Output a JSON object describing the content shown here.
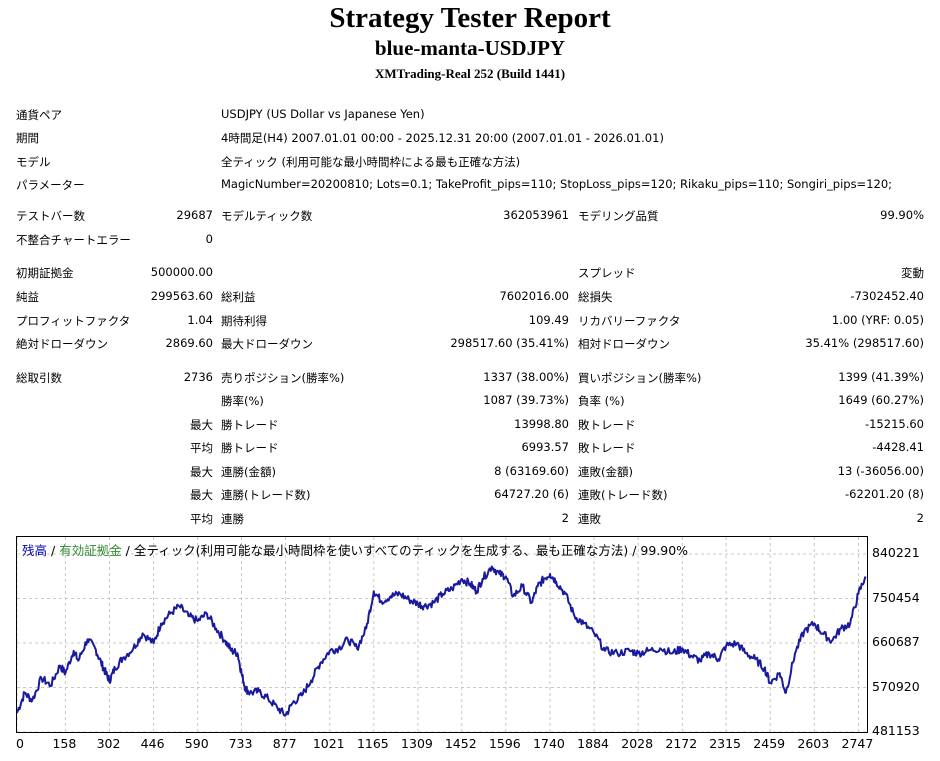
{
  "header": {
    "title": "Strategy Tester Report",
    "ea_name": "blue-manta-USDJPY",
    "server": "XMTrading-Real 252 (Build 1441)"
  },
  "settings": {
    "symbol_label": "通貨ペア",
    "symbol_value": "USDJPY (US Dollar vs Japanese Yen)",
    "period_label": "期間",
    "period_value": "4時間足(H4) 2007.01.01 00:00 - 2025.12.31 20:00 (2007.01.01 - 2026.01.01)",
    "model_label": "モデル",
    "model_value": "全ティック (利用可能な最小時間枠による最も正確な方法)",
    "params_label": "パラメーター",
    "params_value": "MagicNumber=20200810; Lots=0.1; TakeProfit_pips=110; StopLoss_pips=120; Rikaku_pips=110; Songiri_pips=120;"
  },
  "stats": {
    "bars_label": "テストバー数",
    "bars_value": "29687",
    "ticks_label": "モデルティック数",
    "ticks_value": "362053961",
    "quality_label": "モデリング品質",
    "quality_value": "99.90%",
    "errors_label": "不整合チャートエラー",
    "errors_value": "0",
    "deposit_label": "初期証拠金",
    "deposit_value": "500000.00",
    "spread_label": "スプレッド",
    "spread_value": "変動",
    "net_label": "純益",
    "net_value": "299563.60",
    "gross_profit_label": "総利益",
    "gross_profit_value": "7602016.00",
    "gross_loss_label": "総損失",
    "gross_loss_value": "-7302452.40",
    "pf_label": "プロフィットファクタ",
    "pf_value": "1.04",
    "expected_label": "期待利得",
    "expected_value": "109.49",
    "recovery_label": "リカバリーファクタ",
    "recovery_value": "1.00 (YRF: 0.05)",
    "abs_dd_label": "絶対ドローダウン",
    "abs_dd_value": "2869.60",
    "max_dd_label": "最大ドローダウン",
    "max_dd_value": "298517.60 (35.41%)",
    "rel_dd_label": "相対ドローダウン",
    "rel_dd_value": "35.41% (298517.60)",
    "total_trades_label": "総取引数",
    "total_trades_value": "2736",
    "short_label": "売りポジション(勝率%)",
    "short_value": "1337 (38.00%)",
    "long_label": "買いポジション(勝率%)",
    "long_value": "1399 (41.39%)",
    "win_label": "勝率(%)",
    "win_value": "1087 (39.73%)",
    "loss_label": "負率 (%)",
    "loss_value": "1649 (60.27%)",
    "max_win_prefix": "最大",
    "max_win_label": "勝トレード",
    "max_win_value": "13998.80",
    "max_loss_label": "敗トレード",
    "max_loss_value": "-15215.60",
    "avg_win_prefix": "平均",
    "avg_win_label": "勝トレード",
    "avg_win_value": "6993.57",
    "avg_loss_label": "敗トレード",
    "avg_loss_value": "-4428.41",
    "max_cw_prefix": "最大",
    "max_cw_label": "連勝(金額)",
    "max_cw_value": "8 (63169.60)",
    "max_cl_label": "連敗(金額)",
    "max_cl_value": "13 (-36056.00)",
    "max_cwt_prefix": "最大",
    "max_cwt_label": "連勝(トレード数)",
    "max_cwt_value": "64727.20 (6)",
    "max_clt_label": "連敗(トレード数)",
    "max_clt_value": "-62201.20 (8)",
    "avg_cw_prefix": "平均",
    "avg_cw_label": "連勝",
    "avg_cw_value": "2",
    "avg_cl_label": "連敗",
    "avg_cl_value": "2"
  },
  "legend": {
    "balance": "残高",
    "sep1": " / ",
    "equity": "有効証拠金",
    "rest": " / 全ティック(利用可能な最小時間枠を使いすべてのティックを生成する、最も正確な方法) / 99.90%"
  },
  "colors": {
    "balance": "#0000b0",
    "equity": "#2e8b2e",
    "line": "#1a1a9c",
    "grid": "#c8c8c8"
  },
  "chart_data": {
    "type": "line",
    "x_ticks": [
      "0",
      "158",
      "302",
      "446",
      "590",
      "733",
      "877",
      "1021",
      "1165",
      "1309",
      "1452",
      "1596",
      "1740",
      "1884",
      "2028",
      "2172",
      "2315",
      "2459",
      "2603",
      "2747"
    ],
    "y_ticks": [
      "840221",
      "750454",
      "660687",
      "570920",
      "481153"
    ],
    "ylim": [
      481153,
      840221
    ],
    "xlim": [
      0,
      2775
    ],
    "series": [
      {
        "name": "残高",
        "x": [
          0,
          25,
          50,
          80,
          110,
          140,
          158,
          185,
          200,
          230,
          255,
          275,
          290,
          302,
          320,
          345,
          380,
          410,
          446,
          470,
          500,
          530,
          560,
          590,
          620,
          650,
          680,
          700,
          720,
          733,
          745,
          760,
          790,
          820,
          850,
          877,
          900,
          930,
          960,
          990,
          1021,
          1050,
          1080,
          1110,
          1140,
          1165,
          1190,
          1220,
          1250,
          1280,
          1309,
          1330,
          1360,
          1390,
          1420,
          1452,
          1480,
          1500,
          1520,
          1550,
          1575,
          1596,
          1620,
          1650,
          1680,
          1700,
          1720,
          1740,
          1760,
          1790,
          1820,
          1850,
          1884,
          1920,
          1960,
          2000,
          2028,
          2060,
          2100,
          2140,
          2172,
          2200,
          2230,
          2260,
          2290,
          2315,
          2350,
          2380,
          2410,
          2440,
          2459,
          2490,
          2510,
          2540,
          2570,
          2603,
          2630,
          2660,
          2690,
          2720,
          2747,
          2770
        ],
        "y": [
          520000,
          560000,
          545000,
          590000,
          575000,
          615000,
          600000,
          645000,
          625000,
          668000,
          650000,
          620000,
          600000,
          585000,
          610000,
          630000,
          650000,
          680000,
          660000,
          700000,
          720000,
          735000,
          715000,
          705000,
          720000,
          690000,
          665000,
          645000,
          640000,
          600000,
          570000,
          560000,
          563000,
          548000,
          530000,
          515000,
          540000,
          555000,
          585000,
          620000,
          645000,
          650000,
          668000,
          650000,
          690000,
          765000,
          745000,
          755000,
          760000,
          748000,
          740000,
          735000,
          742000,
          760000,
          770000,
          790000,
          780000,
          765000,
          790000,
          815000,
          800000,
          795000,
          755000,
          775000,
          742000,
          775000,
          790000,
          800000,
          785000,
          760000,
          715000,
          700000,
          680000,
          645000,
          640000,
          645000,
          640000,
          645000,
          650000,
          640000,
          650000,
          635000,
          625000,
          640000,
          628000,
          655000,
          660000,
          640000,
          628000,
          610000,
          580000,
          600000,
          560000,
          640000,
          685000,
          700000,
          680000,
          665000,
          690000,
          700000,
          760000,
          795000
        ]
      }
    ]
  }
}
